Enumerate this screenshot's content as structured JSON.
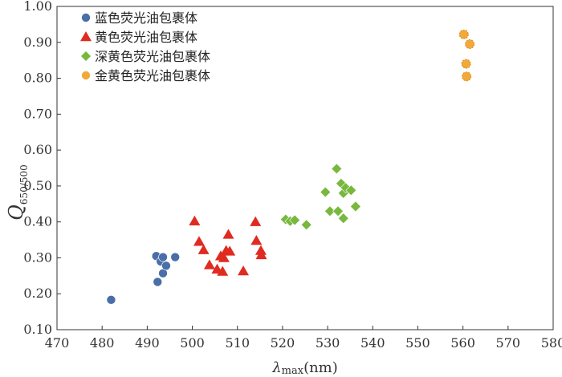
{
  "chart_data": {
    "type": "scatter",
    "xlim": [
      470,
      580
    ],
    "ylim": [
      0.1,
      1.0
    ],
    "x_ticks": [
      "470",
      "480",
      "490",
      "500",
      "510",
      "520",
      "530",
      "540",
      "550",
      "560",
      "570",
      "580"
    ],
    "y_ticks": [
      "0.10",
      "0.20",
      "0.30",
      "0.40",
      "0.50",
      "0.60",
      "0.70",
      "0.80",
      "0.90",
      "1.00"
    ],
    "xlabel": {
      "main": "λ",
      "sub": "max",
      "unit": "(nm)"
    },
    "ylabel": {
      "main": "Q",
      "sub": "650/500"
    },
    "grid": false,
    "legend_position": "top-left",
    "series": [
      {
        "name": "蓝色荧光油包裹体",
        "marker": "circle",
        "color": "#4a6fa8",
        "points": [
          [
            482,
            0.183
          ],
          [
            492,
            0.305
          ],
          [
            492.3,
            0.233
          ],
          [
            493,
            0.29
          ],
          [
            493.5,
            0.302
          ],
          [
            493.5,
            0.257
          ],
          [
            494.2,
            0.278
          ],
          [
            496.2,
            0.302
          ]
        ]
      },
      {
        "name": "黄色荧光油包裹体",
        "marker": "triangle",
        "color": "#e02b20",
        "points": [
          [
            500.5,
            0.402
          ],
          [
            501.5,
            0.345
          ],
          [
            502.5,
            0.322
          ],
          [
            503.8,
            0.28
          ],
          [
            505.5,
            0.268
          ],
          [
            506.3,
            0.305
          ],
          [
            506.7,
            0.262
          ],
          [
            507,
            0.3
          ],
          [
            507.5,
            0.32
          ],
          [
            508,
            0.365
          ],
          [
            508.3,
            0.318
          ],
          [
            511.3,
            0.263
          ],
          [
            514,
            0.4
          ],
          [
            514.2,
            0.348
          ],
          [
            515.2,
            0.32
          ],
          [
            515.3,
            0.308
          ]
        ]
      },
      {
        "name": "深黄色荧光油包裹体",
        "marker": "diamond",
        "color": "#77b83d",
        "points": [
          [
            520.7,
            0.407
          ],
          [
            521.7,
            0.402
          ],
          [
            522.7,
            0.405
          ],
          [
            525.3,
            0.392
          ],
          [
            529.5,
            0.483
          ],
          [
            530.5,
            0.43
          ],
          [
            532,
            0.548
          ],
          [
            532.3,
            0.43
          ],
          [
            533,
            0.507
          ],
          [
            533.5,
            0.48
          ],
          [
            533.5,
            0.41
          ],
          [
            534,
            0.495
          ],
          [
            535.2,
            0.488
          ],
          [
            536.2,
            0.443
          ]
        ]
      },
      {
        "name": "金黄色荧光油包裹体",
        "marker": "circle",
        "color": "#f2a93b",
        "points": [
          [
            560.2,
            0.922
          ],
          [
            560.7,
            0.84
          ],
          [
            560.8,
            0.805
          ],
          [
            561.5,
            0.895
          ]
        ]
      }
    ]
  }
}
